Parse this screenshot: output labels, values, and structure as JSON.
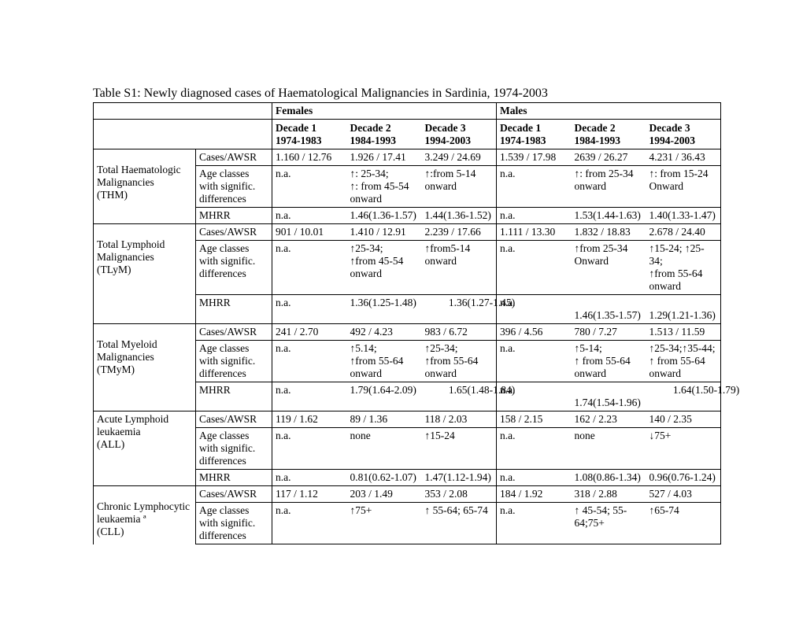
{
  "title": "Table S1: Newly diagnosed cases of Haematological Malignancies in Sardinia, 1974-2003",
  "hdr": {
    "females": "Females",
    "males": "Males"
  },
  "dec": {
    "d1l1": "Decade 1",
    "d1l2": "1974-1983",
    "d2l1": "Decade 2",
    "d2l2": "1984-1993",
    "d3l1": "Decade 3",
    "d3l2": "1994-2003"
  },
  "metric": {
    "cases": "Cases/AWSR",
    "age1": "Age  classes with signific. differences",
    "age2": "Age classes with signific. differences",
    "mhrr": "MHRR"
  },
  "thm": {
    "name1": "Total Haematologic",
    "name2": "Malignancies",
    "name3": "(THM)",
    "r1": {
      "f1": "1.160   /   12.76",
      "f2": "1.926  /  17.41",
      "f3": "3.249  / 24.69",
      "m1": "1.539  / 17.98",
      "m2": "2639  / 26.27",
      "m3": "4.231  /  36.43"
    },
    "r2": {
      "f1": "n.a.",
      "f2": "↑: 25-34;\n↑: from 45-54 onward",
      "f3": "↑:from  5-14 onward",
      "m1": "n.a.",
      "m2": "↑: from 25-34 onward",
      "m3": "↑:  from 15-24 Onward"
    },
    "r3": {
      "f1": "n.a.",
      "f2": "1.46(1.36-1.57)",
      "f3": "1.44(1.36-1.52)",
      "m1": "n.a.",
      "m2": "1.53(1.44-1.63)",
      "m3": "1.40(1.33-1.47)"
    }
  },
  "tlym": {
    "name1": "Total Lymphoid",
    "name2": "Malignancies",
    "name3": "(TLyM)",
    "r1": {
      "f1": "901  /  10.01",
      "f2": "1.410  /  12.91",
      "f3": "2.239  /  17.66",
      "m1": "1.111  /  13.30",
      "m2": "1.832  /  18.83",
      "m3": "2.678  /  24.40"
    },
    "r2": {
      "f1": "n.a.",
      "f2": "↑25-34;\n↑from 45-54 onward",
      "f3": "↑from5-14 onward",
      "m1": "n.a.",
      "m2": "↑from 25-34 Onward",
      "m3": "↑15-24; ↑25-34;\n↑from 55-64 onward"
    },
    "r3": {
      "f1": "n.a.",
      "f2": "1.36(1.25-1.48)",
      "f3s": "         1.36(1.27-1.45)",
      "m1": "n.a.",
      "m2": "1.46(1.35-1.57)",
      "m3": "1.29(1.21-1.36)"
    }
  },
  "tmym": {
    "name1": "Total Myeloid",
    "name2": "Malignancies",
    "name3": "(TMyM)",
    "r1": {
      "f1": "241  /  2.70",
      "f2": "492  /  4.23",
      "f3": "983  /  6.72",
      "m1": "396 /  4.56",
      "m2": "780  /  7.27",
      "m3": "1.513  /  11.59"
    },
    "r2": {
      "f1": "n.a.",
      "f2": "↑5.14;\n↑from 55-64 onward",
      "f3": "↑25-34;\n↑from 55-64 onward",
      "m1": "n.a.",
      "m2": "↑5-14;\n↑ from 55-64 onward",
      "m3": "↑25-34;↑35-44;\n↑ from 55-64 onward"
    },
    "r3": {
      "f1": "n.a.",
      "f2": "1.79(1.64-2.09)",
      "f3s": "         1.65(1.48-1.84)",
      "m1": "n.a.",
      "m2": "1.74(1.54-1.96)",
      "m3s": "         1.64(1.50-1.79)"
    }
  },
  "all": {
    "name1": "Acute Lymphoid",
    "name2": "leukaemia",
    "name3": "(ALL)",
    "r1": {
      "f1": "119  /  1.62",
      "f2": "89 / 1.36",
      "f3": "118  /  2.03",
      "m1": "158  /  2.15",
      "m2": "162  /  2.23",
      "m3": "140  /  2.35"
    },
    "r2": {
      "f1": "n.a.",
      "f2": "none",
      "f3": "↑15-24",
      "m1": "n.a.",
      "m2": "none",
      "m3": "↓75+"
    },
    "r3": {
      "f1": "n.a.",
      "f2": "0.81(0.62-1.07)",
      "f3": "1.47(1.12-1.94)",
      "m1": "n.a.",
      "m2": "1.08(0.86-1.34)",
      "m3": "0.96(0.76-1.24)"
    }
  },
  "cll": {
    "name1": "Chronic Lymphocytic",
    "name2": "leukaemia ª",
    "name3": "(CLL)",
    "r1": {
      "f1": "117  /  1.12",
      "f2": "203  /  1.49",
      "f3": "353 /  2.08",
      "m1": "184  /  1.92",
      "m2": "318  /  2.88",
      "m3": "527  /  4.03"
    },
    "r2": {
      "f1": "n.a.",
      "f2": "↑75+",
      "f3": "↑ 55-64; 65-74",
      "m1": "n.a.",
      "m2": "↑ 45-54; 55-64;75+",
      "m3": "↑65-74"
    }
  }
}
